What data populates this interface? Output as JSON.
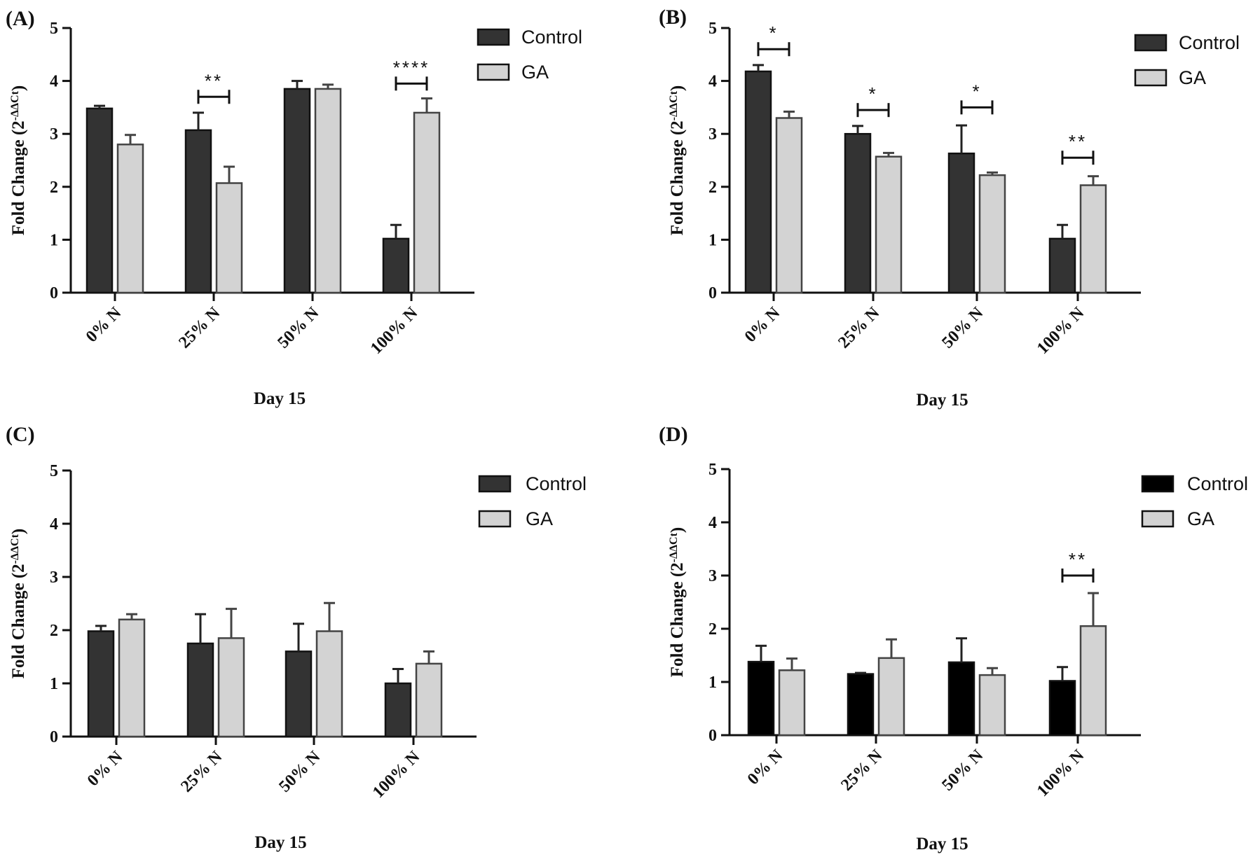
{
  "chart_data": [
    {
      "type": "bar",
      "panel_label": "(A)",
      "categories": [
        "0% N",
        "25% N",
        "50% N",
        "100% N"
      ],
      "series": [
        {
          "name": "Control",
          "color": "#333333",
          "values": [
            3.48,
            3.07,
            3.85,
            1.02
          ],
          "errors": [
            0.05,
            0.33,
            0.15,
            0.26
          ]
        },
        {
          "name": "GA",
          "color": "#d3d3d3",
          "values": [
            2.8,
            2.07,
            3.85,
            3.4
          ],
          "errors": [
            0.18,
            0.31,
            0.08,
            0.27
          ]
        }
      ],
      "ylabel": "Fold Change (2",
      "ylabel_sup": "-ΔΔCt",
      "ylabel_close": ")",
      "xlabel": "Day 15",
      "ylim": [
        0,
        5
      ],
      "yticks": [
        "0",
        "1",
        "2",
        "3",
        "4",
        "5"
      ],
      "legend": [
        "Control",
        "GA"
      ],
      "legend_position": "top-right",
      "significance": [
        {
          "category": 1,
          "label": "**",
          "bracket_y": 3.7
        },
        {
          "category": 3,
          "label": "****",
          "bracket_y": 3.95
        }
      ]
    },
    {
      "type": "bar",
      "panel_label": "(B)",
      "categories": [
        "0% N",
        "25% N",
        "50% N",
        "100% N"
      ],
      "series": [
        {
          "name": "Control",
          "color": "#333333",
          "values": [
            4.18,
            3.0,
            2.63,
            1.02
          ],
          "errors": [
            0.12,
            0.15,
            0.53,
            0.26
          ]
        },
        {
          "name": "GA",
          "color": "#d3d3d3",
          "values": [
            3.3,
            2.57,
            2.22,
            2.03
          ],
          "errors": [
            0.12,
            0.07,
            0.05,
            0.17
          ]
        }
      ],
      "ylabel": "Fold Change (2",
      "ylabel_sup": "-ΔΔCt",
      "ylabel_close": ")",
      "xlabel": "Day 15",
      "ylim": [
        0,
        5
      ],
      "yticks": [
        "0",
        "1",
        "2",
        "3",
        "4",
        "5"
      ],
      "legend": [
        "Control",
        "GA"
      ],
      "legend_position": "top-right",
      "significance": [
        {
          "category": 0,
          "label": "*",
          "bracket_y": 4.6
        },
        {
          "category": 1,
          "label": "*",
          "bracket_y": 3.45
        },
        {
          "category": 2,
          "label": "*",
          "bracket_y": 3.5
        },
        {
          "category": 3,
          "label": "**",
          "bracket_y": 2.55
        }
      ]
    },
    {
      "type": "bar",
      "panel_label": "(C)",
      "categories": [
        "0% N",
        "25% N",
        "50% N",
        "100% N"
      ],
      "series": [
        {
          "name": "Control",
          "color": "#333333",
          "values": [
            1.98,
            1.75,
            1.6,
            1.0
          ],
          "errors": [
            0.1,
            0.55,
            0.52,
            0.27
          ]
        },
        {
          "name": "GA",
          "color": "#d3d3d3",
          "values": [
            2.2,
            1.85,
            1.98,
            1.37
          ],
          "errors": [
            0.1,
            0.55,
            0.53,
            0.23
          ]
        }
      ],
      "ylabel": "Fold Change (2",
      "ylabel_sup": "-ΔΔCt",
      "ylabel_close": ")",
      "xlabel": "Day 15",
      "ylim": [
        0,
        5
      ],
      "yticks": [
        "0",
        "1",
        "2",
        "3",
        "4",
        "5"
      ],
      "legend": [
        "Control",
        "GA"
      ],
      "legend_position": "top-right",
      "significance": []
    },
    {
      "type": "bar",
      "panel_label": "(D)",
      "categories": [
        "0% N",
        "25% N",
        "50% N",
        "100% N"
      ],
      "series": [
        {
          "name": "Control",
          "color": "#000000",
          "values": [
            1.38,
            1.15,
            1.37,
            1.02
          ],
          "errors": [
            0.3,
            0.02,
            0.45,
            0.26
          ]
        },
        {
          "name": "GA",
          "color": "#d3d3d3",
          "values": [
            1.22,
            1.45,
            1.13,
            2.05
          ],
          "errors": [
            0.22,
            0.35,
            0.13,
            0.62
          ]
        }
      ],
      "ylabel": "Fold Change (2",
      "ylabel_sup": "-ΔΔCt",
      "ylabel_close": ")",
      "xlabel": "Day 15",
      "ylim": [
        0,
        5
      ],
      "yticks": [
        "0",
        "1",
        "2",
        "3",
        "4",
        "5"
      ],
      "legend": [
        "Control",
        "GA"
      ],
      "legend_position": "top-right",
      "significance": [
        {
          "category": 3,
          "label": "**",
          "bracket_y": 3.0
        }
      ]
    }
  ]
}
